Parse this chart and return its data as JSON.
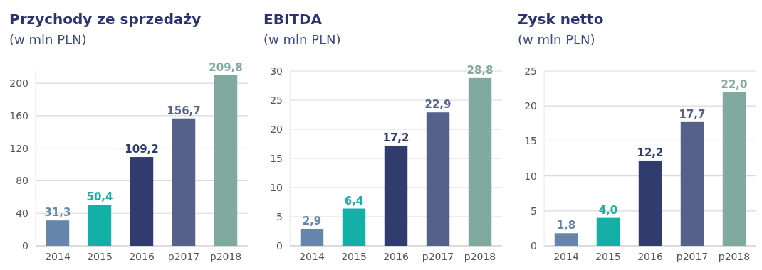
{
  "chart_data": [
    {
      "type": "bar",
      "title": "Przychody ze sprzedaży",
      "subtitle": "(w mln PLN)",
      "categories": [
        "2014",
        "2015",
        "2016",
        "p2017",
        "p2018"
      ],
      "values": [
        31.3,
        50.4,
        109.2,
        156.7,
        209.8
      ],
      "colors": [
        "#6586aa",
        "#14afa6",
        "#313c6e",
        "#556189",
        "#80aa9f"
      ],
      "value_labels": [
        "31,3",
        "50,4",
        "109,2",
        "156,7",
        "209,8"
      ],
      "ylim": [
        0,
        215
      ],
      "yticks": [
        0,
        40,
        80,
        120,
        160,
        200
      ],
      "grid": "y"
    },
    {
      "type": "bar",
      "title": "EBITDA",
      "subtitle": "(w mln PLN)",
      "categories": [
        "2014",
        "2015",
        "2016",
        "p2017",
        "p2018"
      ],
      "values": [
        2.9,
        6.4,
        17.2,
        22.9,
        28.8
      ],
      "colors": [
        "#6586aa",
        "#14afa6",
        "#313c6e",
        "#556189",
        "#80aa9f"
      ],
      "value_labels": [
        "2,9",
        "6,4",
        "17,2",
        "22,9",
        "28,8"
      ],
      "ylim": [
        0,
        30
      ],
      "yticks": [
        0,
        5,
        10,
        15,
        20,
        25,
        30
      ],
      "grid": "y"
    },
    {
      "type": "bar",
      "title": "Zysk netto",
      "subtitle": "(w mln PLN)",
      "categories": [
        "2014",
        "2015",
        "2016",
        "p2017",
        "p2018"
      ],
      "values": [
        1.8,
        4.0,
        12.2,
        17.7,
        22.0
      ],
      "colors": [
        "#6586aa",
        "#14afa6",
        "#313c6e",
        "#556189",
        "#80aa9f"
      ],
      "value_labels": [
        "1,8",
        "4,0",
        "12,2",
        "17,7",
        "22,0"
      ],
      "ylim": [
        0,
        25
      ],
      "yticks": [
        0,
        5,
        10,
        15,
        20,
        25
      ],
      "grid": "y"
    }
  ]
}
